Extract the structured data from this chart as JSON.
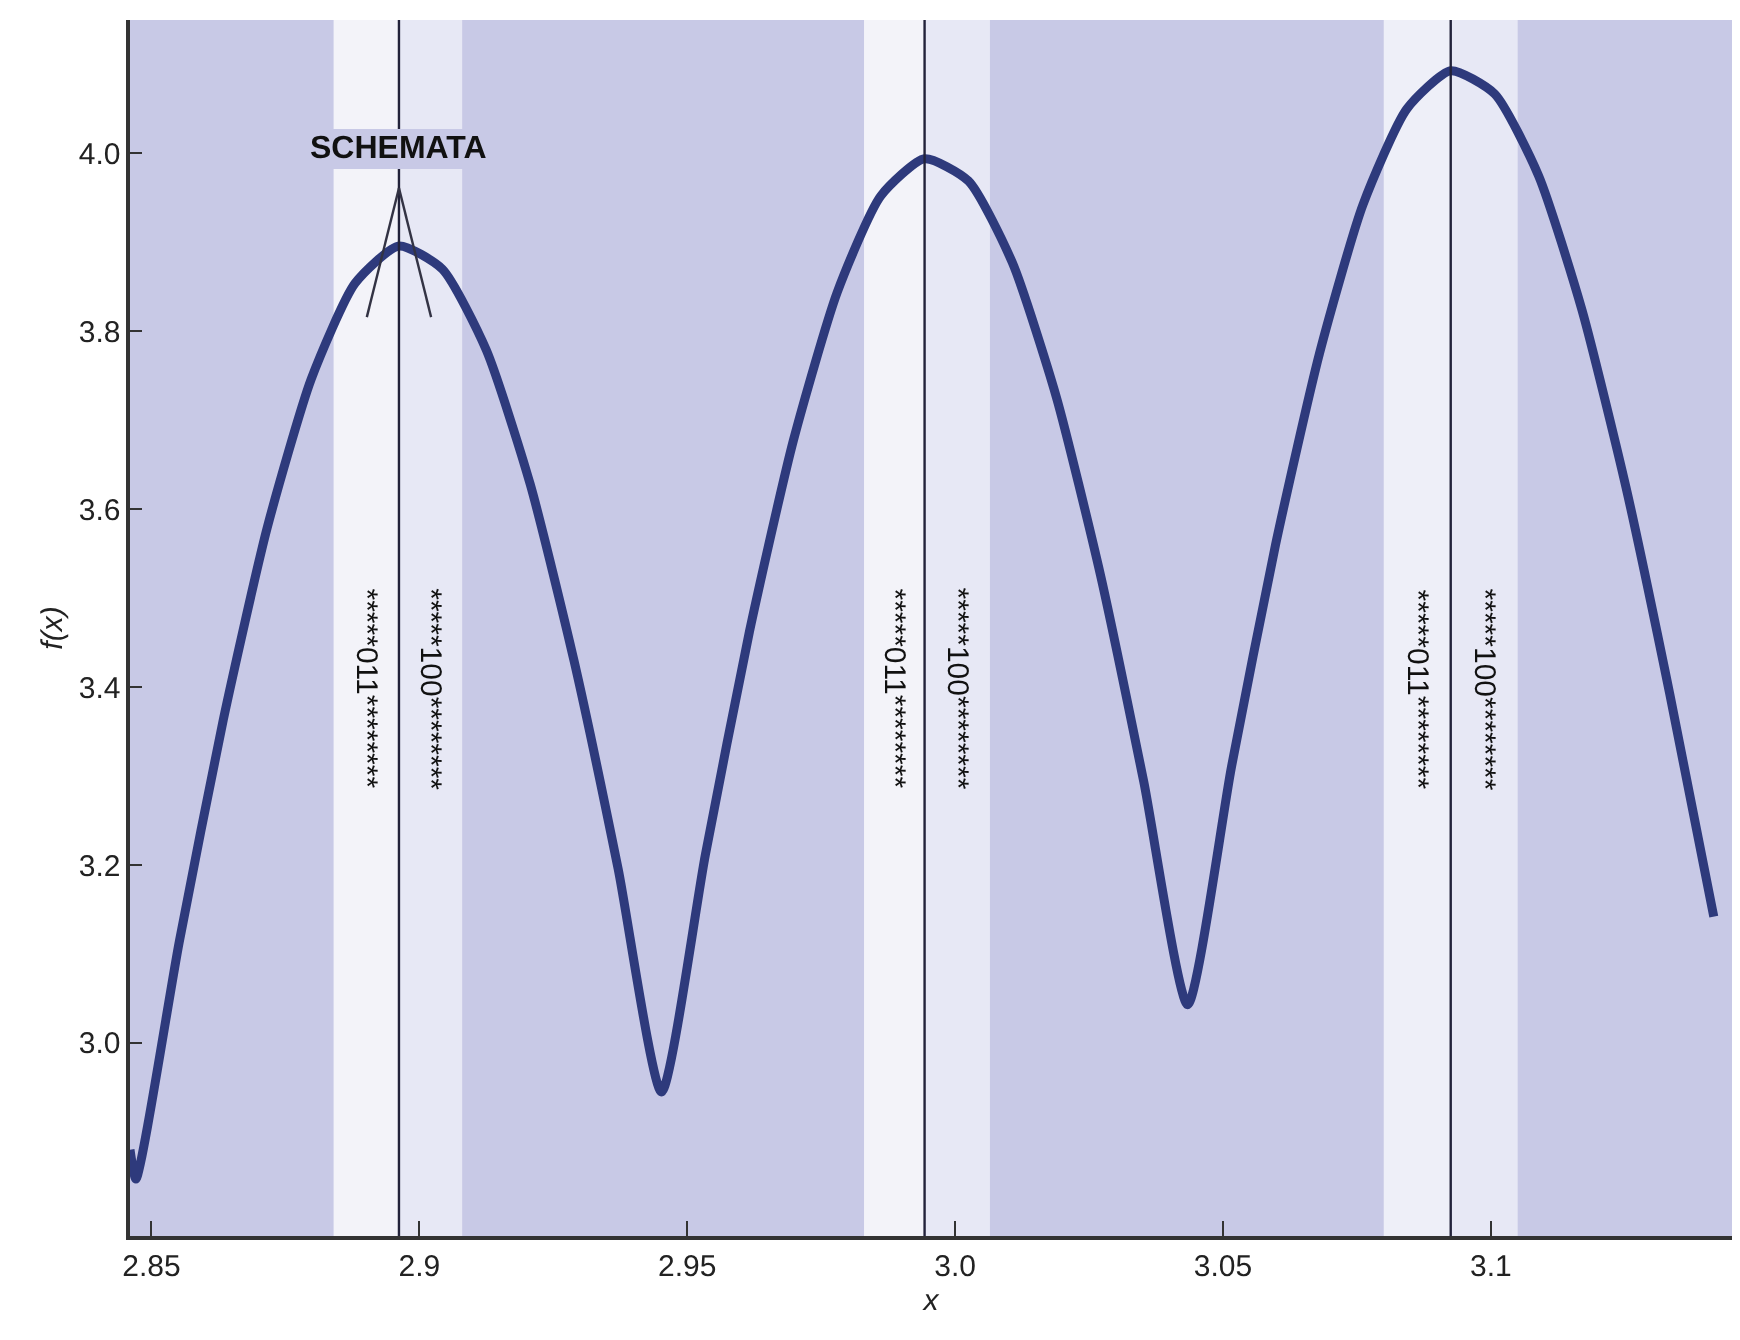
{
  "chart_data": {
    "type": "line",
    "xlabel": "x",
    "ylabel": "f(x)",
    "series": [
      {
        "color": "#2e3a7c",
        "x": [
          2.846,
          2.8471,
          2.8552,
          2.8634,
          2.8716,
          2.8798,
          2.888,
          2.8962,
          2.9043,
          2.9125,
          2.9207,
          2.9289,
          2.9371,
          2.9452,
          2.9534,
          2.9616,
          2.9698,
          2.978,
          2.9861,
          2.9943,
          3.0025,
          3.0107,
          3.0189,
          3.0271,
          3.0352,
          3.0434,
          3.0516,
          3.0598,
          3.068,
          3.0761,
          3.0843,
          3.0925,
          3.1007,
          3.1089,
          3.117,
          3.1252,
          3.1334,
          3.1416
        ],
        "values": [
          2.88,
          2.847,
          3.114,
          3.363,
          3.579,
          3.746,
          3.854,
          3.896,
          3.87,
          3.779,
          3.628,
          3.429,
          3.196,
          2.945,
          3.212,
          3.462,
          3.677,
          3.844,
          3.952,
          3.994,
          3.969,
          3.877,
          3.726,
          3.527,
          3.294,
          3.043,
          3.311,
          3.56,
          3.775,
          3.942,
          4.05,
          4.093,
          4.067,
          3.975,
          3.824,
          3.625,
          3.392,
          3.142
        ]
      }
    ],
    "xlim": [
      2.846,
      3.145
    ],
    "ylim": [
      2.783,
      4.15
    ],
    "xticks": [
      2.85,
      2.9,
      2.95,
      {
        "value": 3.0,
        "label": "3.0"
      },
      3.05,
      3.1
    ],
    "yticks": [
      {
        "value": 3.0,
        "label": "3.0"
      },
      3.2,
      3.4,
      3.6,
      3.8,
      {
        "value": 4.0,
        "label": "4.0"
      }
    ],
    "ref_lines": [
      {
        "axis": "x",
        "value": 2.8962,
        "color": "#22223a"
      },
      {
        "axis": "x",
        "value": 2.9943,
        "color": "#22223a"
      },
      {
        "axis": "x",
        "value": 3.0925,
        "color": "#22223a"
      }
    ],
    "bands": [
      {
        "axis": "x",
        "from": 2.884,
        "to": 2.8962,
        "label": "*****011********",
        "color": "#f3f3f9"
      },
      {
        "axis": "x",
        "from": 2.8962,
        "to": 2.908,
        "label": "*****100********",
        "color": "#e7e8f5"
      },
      {
        "axis": "x",
        "from": 2.983,
        "to": 2.9943,
        "label": "*****011********",
        "color": "#f3f3f9"
      },
      {
        "axis": "x",
        "from": 2.9943,
        "to": 3.0065,
        "label": "*****100********",
        "color": "#e7e8f5"
      },
      {
        "axis": "x",
        "from": 3.08,
        "to": 3.0925,
        "label": "*****011********",
        "color": "#eeeff8"
      },
      {
        "axis": "x",
        "from": 3.0925,
        "to": 3.105,
        "label": "*****100********",
        "color": "#e7e8f5"
      }
    ],
    "annotations": [
      {
        "text": "SCHEMATA",
        "x": 2.8962,
        "y": 3.896
      }
    ],
    "grid": false,
    "marker": "none",
    "line_style": "solid"
  }
}
